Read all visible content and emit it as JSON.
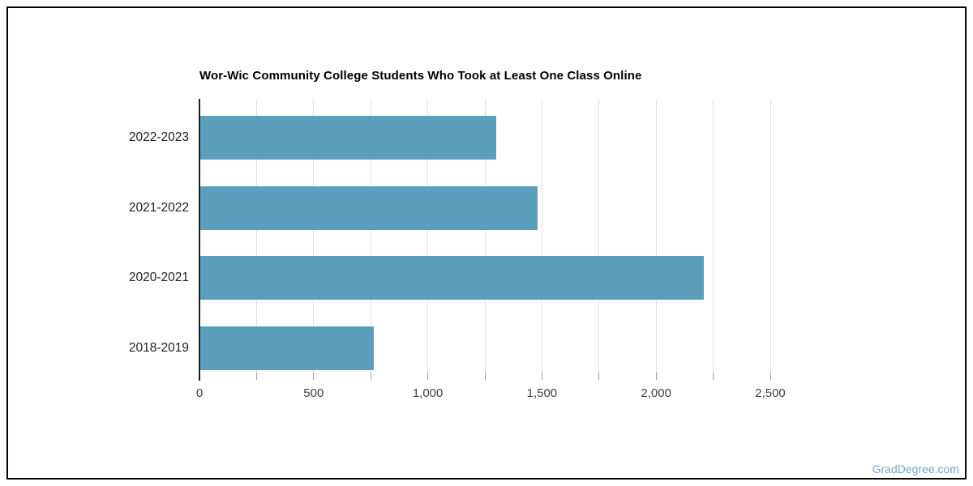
{
  "page": {
    "footer_link": "GradDegree.com"
  },
  "chart_data": {
    "type": "bar",
    "orientation": "horizontal",
    "title": "Wor-Wic Community College Students Who Took at Least One Class Online",
    "categories": [
      "2022-2023",
      "2021-2022",
      "2020-2021",
      "2018-2019"
    ],
    "values": [
      1300,
      1480,
      2210,
      765
    ],
    "xlabel": "",
    "ylabel": "",
    "xlim": [
      0,
      2500
    ],
    "minor_tick_step": 250,
    "x_ticks": [
      {
        "value": 0,
        "label": "0"
      },
      {
        "value": 500,
        "label": "500"
      },
      {
        "value": 1000,
        "label": "1,000"
      },
      {
        "value": 1500,
        "label": "1,500"
      },
      {
        "value": 2000,
        "label": "2,000"
      },
      {
        "value": 2500,
        "label": "2,500"
      }
    ],
    "grid": "vertical",
    "legend": "none",
    "colors": {
      "bar": "#5B9FBC",
      "gridline": "#E1E1E1",
      "axis": "#212121",
      "tick": "#9E9E9E",
      "category_text": "#212121",
      "tick_text": "#424242",
      "title_text": "#000000",
      "footer_link": "#6FA9C7",
      "border": "#000000"
    }
  }
}
